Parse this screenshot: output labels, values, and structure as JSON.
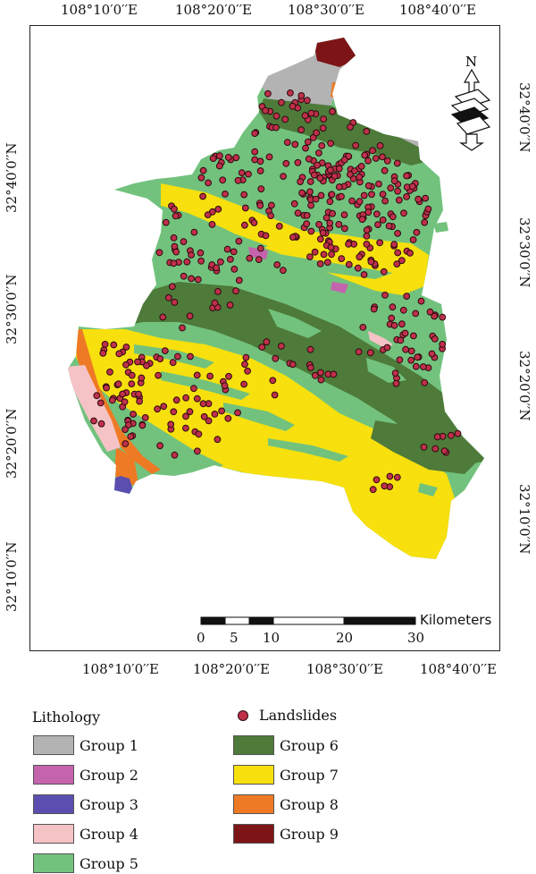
{
  "map": {
    "top_lon_labels": [
      "108°10′0′′E",
      "108°20′0′′E",
      "108°30′0′′E",
      "108°40′0′′E"
    ],
    "bottom_lon_labels": [
      "108°10′0′′E",
      "108°20′0′′E",
      "108°30′0′′E",
      "108°40′0′′E"
    ],
    "left_lat_labels": [
      "32°40′0′′N",
      "32°30′0′′N",
      "32°20′0′′N",
      "32°10′0′′N"
    ],
    "right_lat_labels": [
      "32°40′0′′N",
      "32°30′0′′N",
      "32°20′0′′N",
      "32°10′0′′N"
    ],
    "north_label": "N",
    "scale_bar": {
      "unit": "Kilometers",
      "ticks": [
        "0",
        "5",
        "10",
        "20",
        "30"
      ]
    }
  },
  "legend": {
    "title": "Lithology",
    "landslides_label": "Landslides",
    "groups": [
      {
        "label": "Group 1",
        "color": "#b3b3b3"
      },
      {
        "label": "Group 2",
        "color": "#c464ac"
      },
      {
        "label": "Group 3",
        "color": "#5a4fb0"
      },
      {
        "label": "Group 4",
        "color": "#f5c3c6"
      },
      {
        "label": "Group 5",
        "color": "#72c27e"
      },
      {
        "label": "Group 6",
        "color": "#4e7a3a"
      },
      {
        "label": "Group 7",
        "color": "#f7e00d"
      },
      {
        "label": "Group 8",
        "color": "#ee7a25"
      },
      {
        "label": "Group 9",
        "color": "#7d1416"
      }
    ],
    "landslide_color": "#c0304a"
  }
}
